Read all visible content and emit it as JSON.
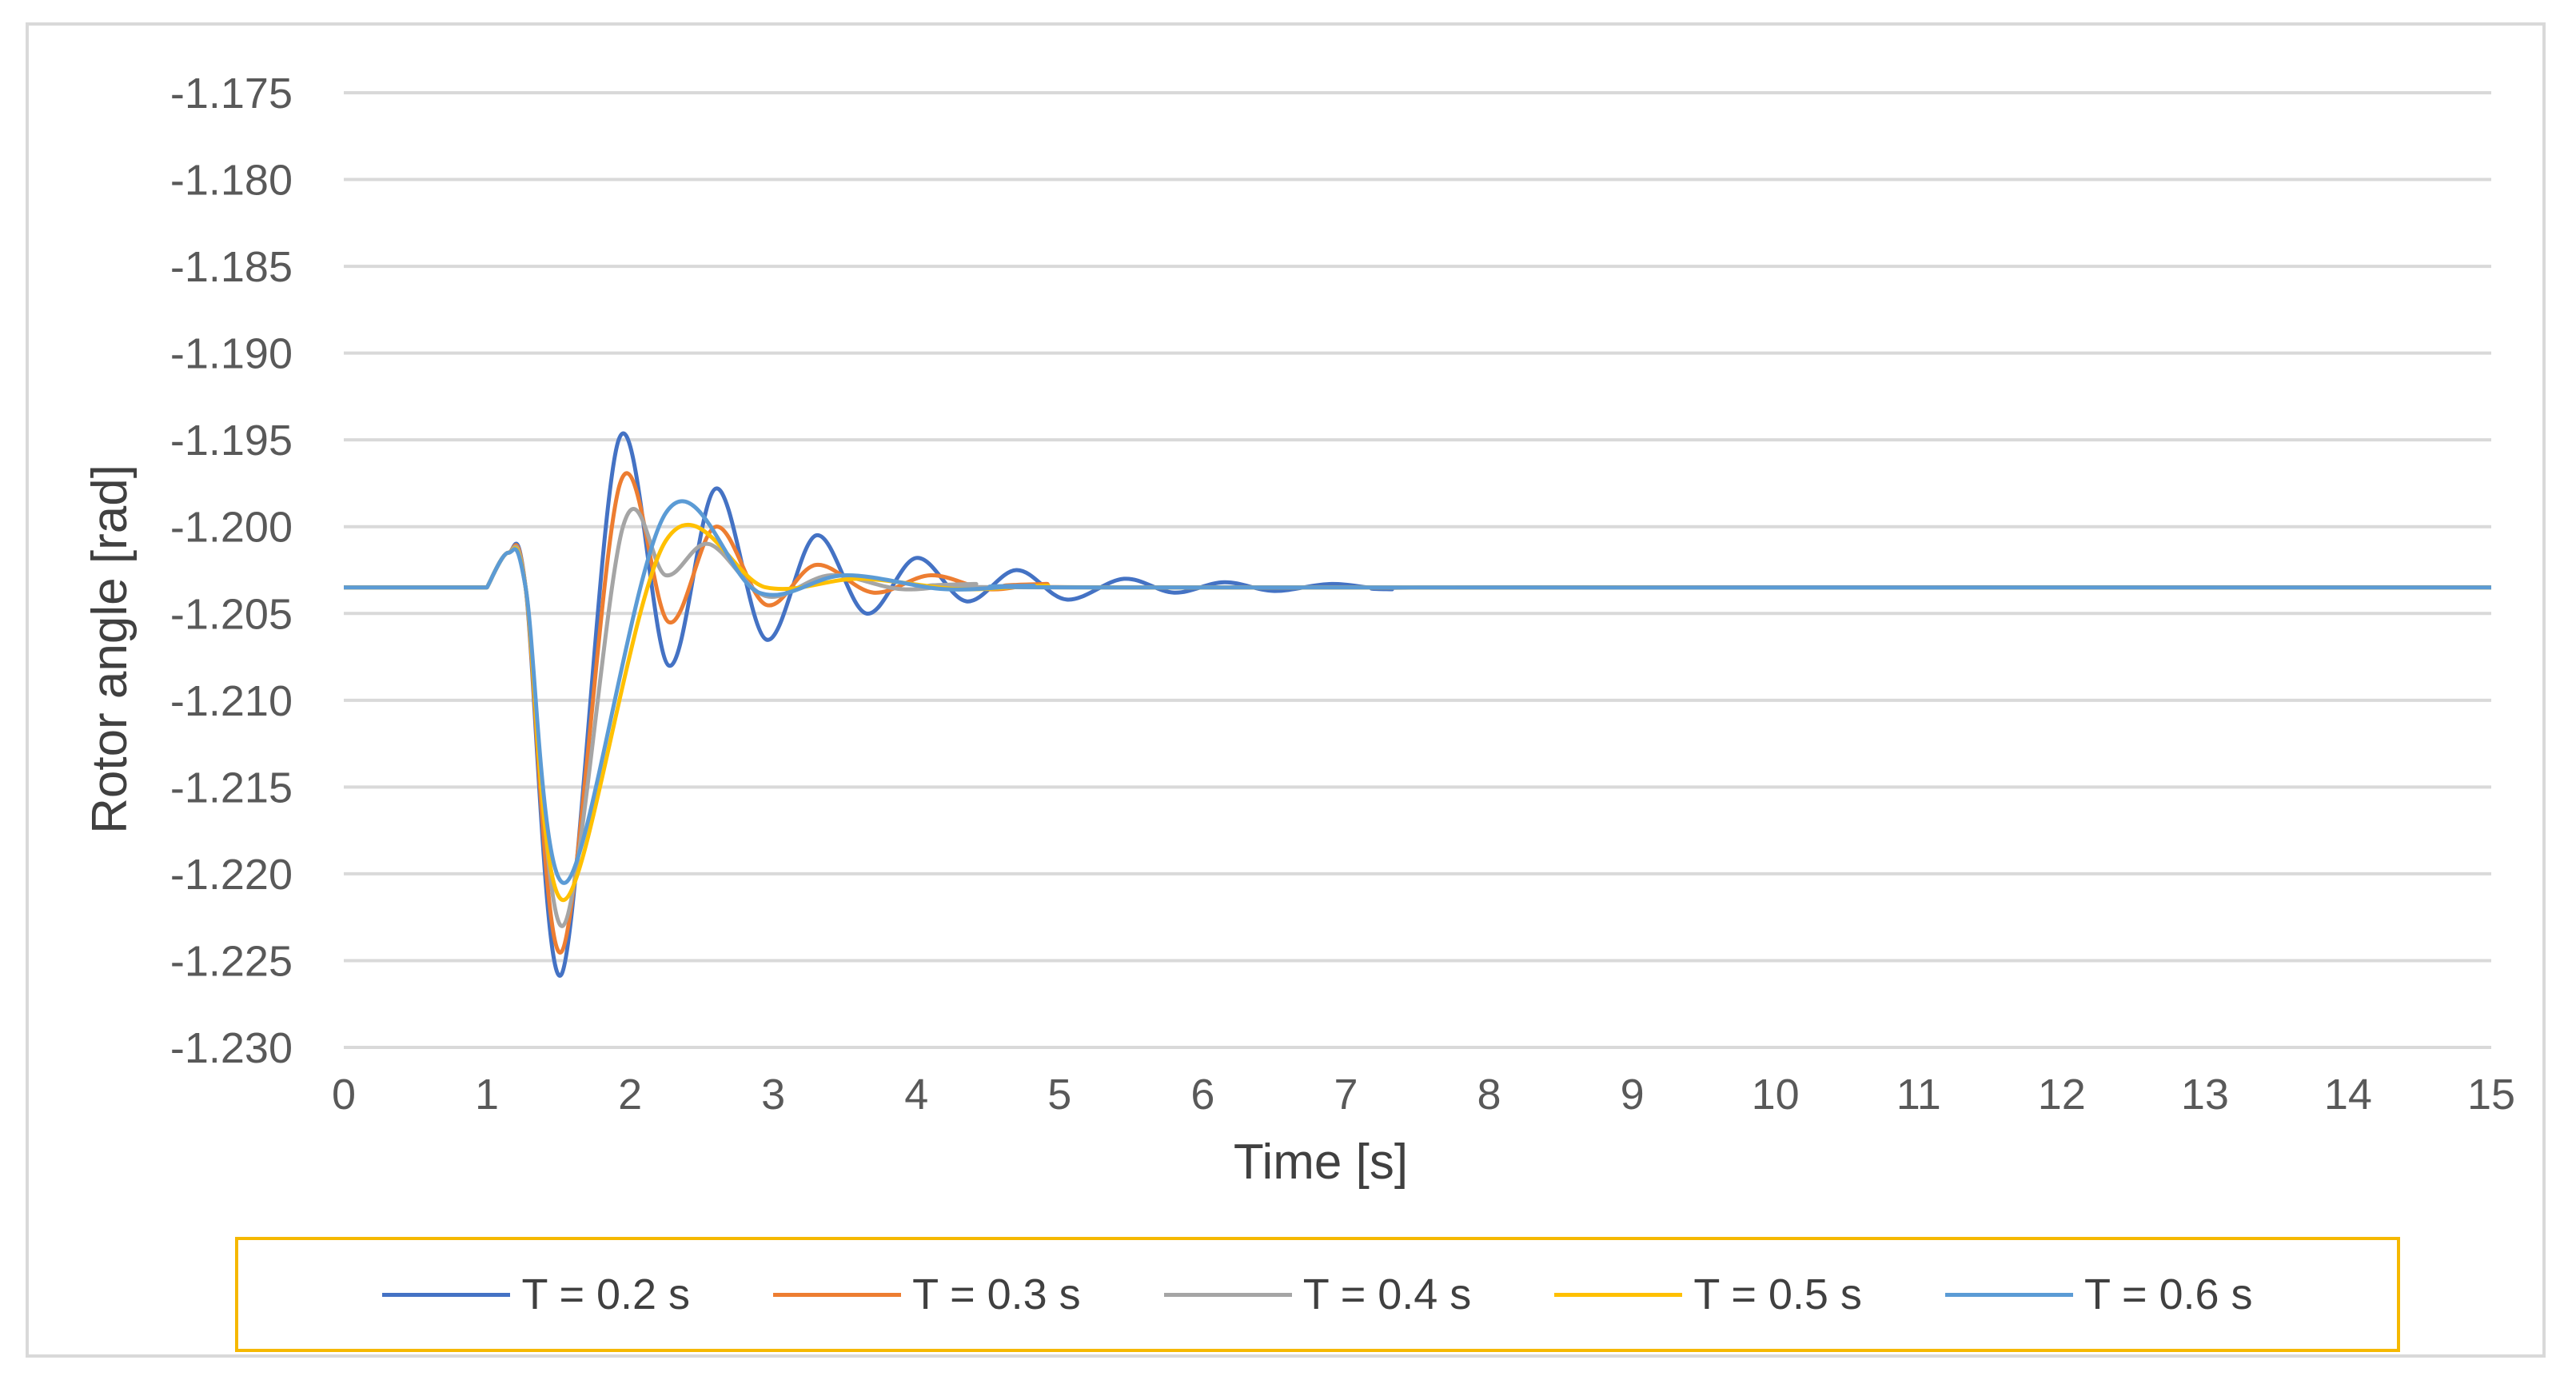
{
  "chart_data": {
    "type": "line",
    "title": "",
    "xlabel": "Time [s]",
    "ylabel": "Rotor angle [rad]",
    "xlim": [
      0,
      15
    ],
    "ylim": [
      -1.23,
      -1.175
    ],
    "x_ticks": [
      "0",
      "1",
      "2",
      "3",
      "4",
      "5",
      "6",
      "7",
      "8",
      "9",
      "10",
      "11",
      "12",
      "13",
      "14",
      "15"
    ],
    "y_ticks": [
      "-1.175",
      "-1.180",
      "-1.185",
      "-1.190",
      "-1.195",
      "-1.200",
      "-1.205",
      "-1.210",
      "-1.215",
      "-1.220",
      "-1.225",
      "-1.230"
    ],
    "grid": "horizontal",
    "legend_position": "bottom",
    "steady_value": -1.2035,
    "disturbance": {
      "start": 1.0,
      "bump_peak_time": 1.15,
      "bump_peak_value": -1.2015
    },
    "series": [
      {
        "name": "T = 0.2 s",
        "color": "#4472c4",
        "points": [
          [
            1.52,
            -1.2258
          ],
          [
            1.92,
            -1.195
          ],
          [
            2.27,
            -1.208
          ],
          [
            2.6,
            -1.1978
          ],
          [
            2.95,
            -1.2065
          ],
          [
            3.3,
            -1.2005
          ],
          [
            3.65,
            -1.205
          ],
          [
            4.0,
            -1.2018
          ],
          [
            4.35,
            -1.2043
          ],
          [
            4.7,
            -1.2025
          ],
          [
            5.05,
            -1.2042
          ],
          [
            5.45,
            -1.203
          ],
          [
            5.8,
            -1.2038
          ],
          [
            6.15,
            -1.2032
          ],
          [
            6.5,
            -1.2037
          ],
          [
            6.9,
            -1.2033
          ],
          [
            7.3,
            -1.2036
          ]
        ]
      },
      {
        "name": "T = 0.3 s",
        "color": "#ed7d31",
        "points": [
          [
            1.52,
            -1.2245
          ],
          [
            1.93,
            -1.1975
          ],
          [
            2.27,
            -1.2055
          ],
          [
            2.6,
            -1.2
          ],
          [
            2.95,
            -1.2045
          ],
          [
            3.3,
            -1.2022
          ],
          [
            3.7,
            -1.2038
          ],
          [
            4.1,
            -1.2028
          ],
          [
            4.5,
            -1.2036
          ],
          [
            4.9,
            -1.2033
          ]
        ]
      },
      {
        "name": "T = 0.4 s",
        "color": "#a5a5a5",
        "points": [
          [
            1.53,
            -1.223
          ],
          [
            1.95,
            -1.2
          ],
          [
            2.25,
            -1.2028
          ],
          [
            2.55,
            -1.201
          ],
          [
            2.95,
            -1.204
          ],
          [
            3.4,
            -1.2028
          ],
          [
            3.9,
            -1.2036
          ],
          [
            4.4,
            -1.2033
          ]
        ]
      },
      {
        "name": "T = 0.5 s",
        "color": "#ffc000",
        "points": [
          [
            1.54,
            -1.2215
          ],
          [
            2.25,
            -1.2008
          ],
          [
            2.95,
            -1.2035
          ],
          [
            3.6,
            -1.203
          ],
          [
            4.3,
            -1.2036
          ],
          [
            4.9,
            -1.2034
          ]
        ]
      },
      {
        "name": "T = 0.6 s",
        "color": "#5b9bd5",
        "points": [
          [
            1.55,
            -1.2205
          ],
          [
            2.25,
            -1.1992
          ],
          [
            2.9,
            -1.2038
          ],
          [
            3.5,
            -1.2028
          ],
          [
            4.2,
            -1.2036
          ],
          [
            4.8,
            -1.2034
          ]
        ]
      }
    ]
  }
}
